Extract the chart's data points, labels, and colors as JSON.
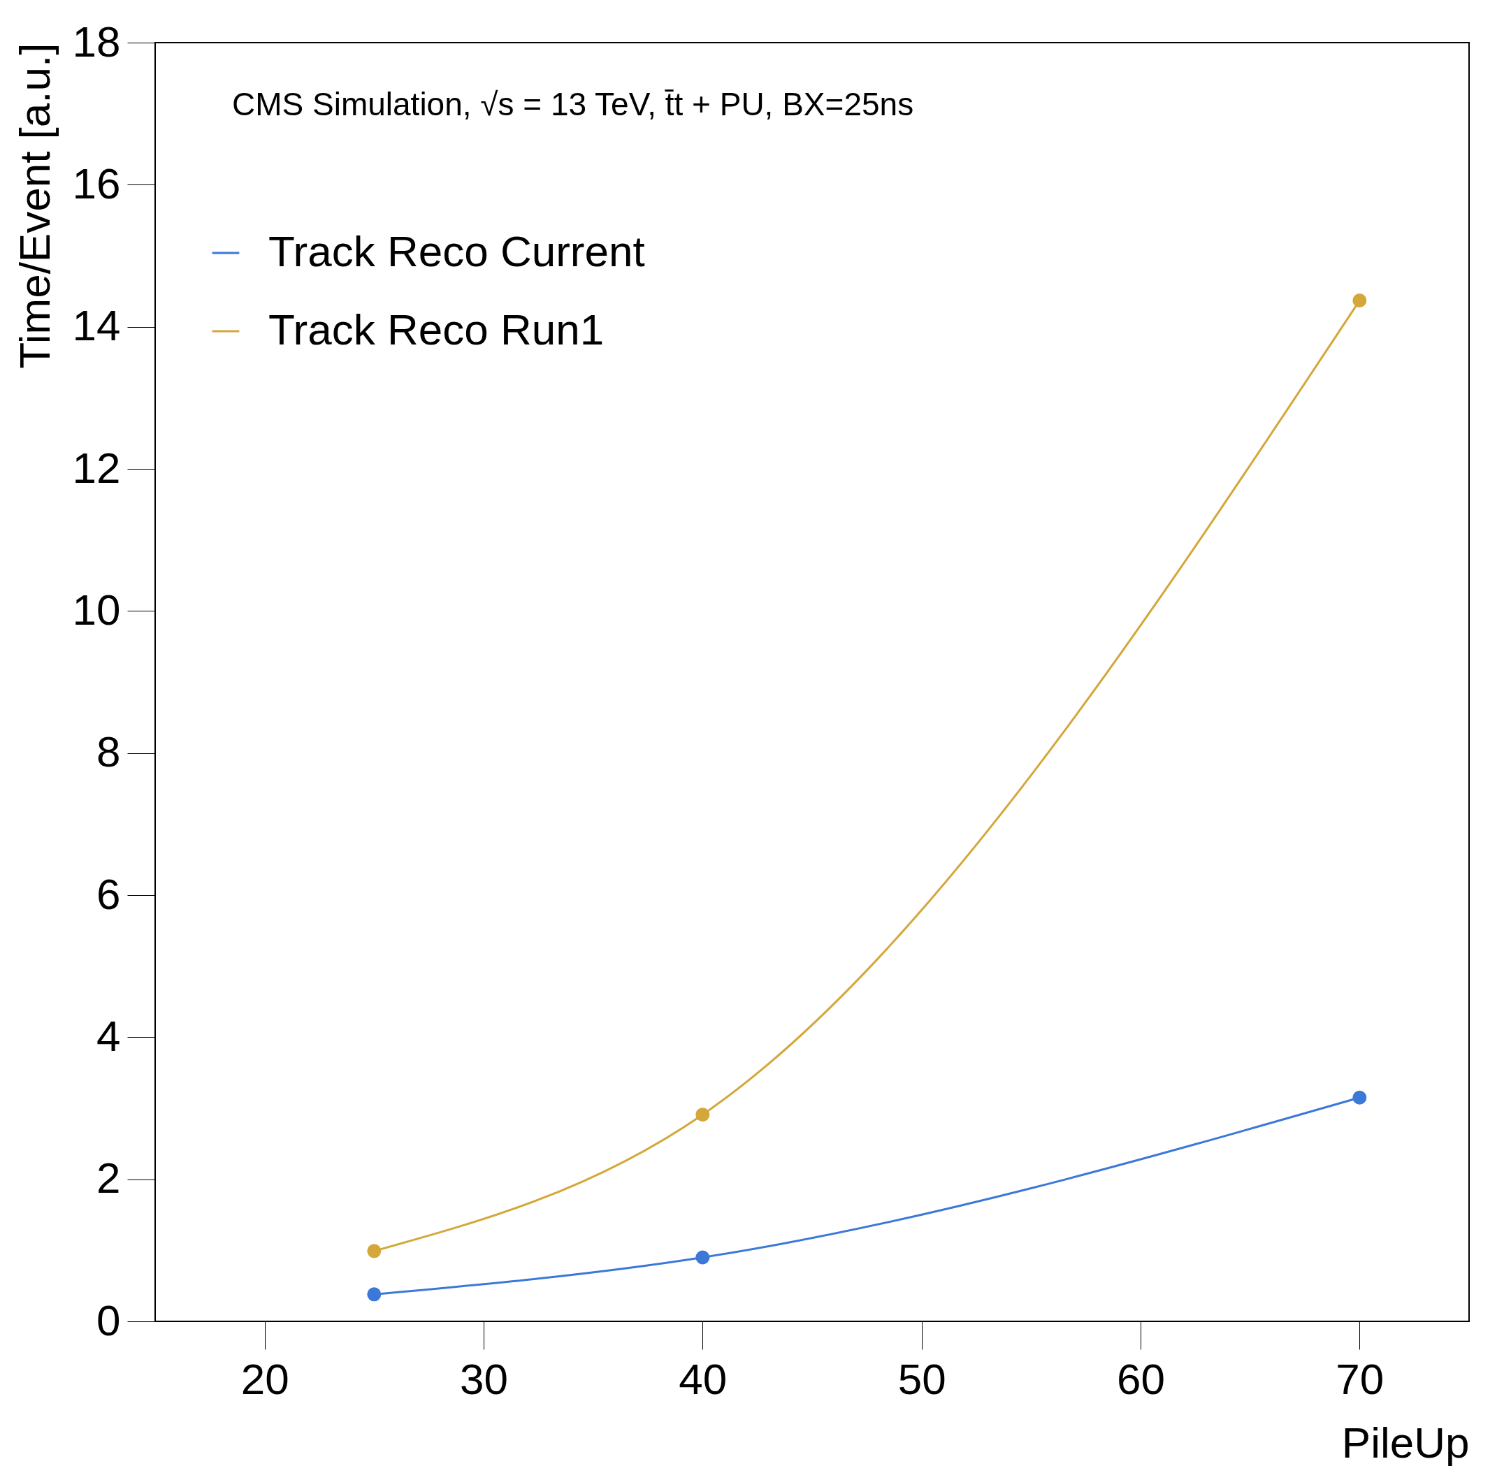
{
  "chart_data": {
    "type": "line",
    "xlabel": "PileUp",
    "ylabel": "Time/Event [a.u.]",
    "annotations": [
      "CMS Simulation, √s = 13 TeV, t̄t + PU, BX=25ns"
    ],
    "x": [
      25,
      40,
      70
    ],
    "series": [
      {
        "name": "Track Reco Current",
        "color": "#3c78d8",
        "values": [
          0.38,
          0.9,
          3.15
        ]
      },
      {
        "name": "Track Reco Run1",
        "color": "#d4a73a",
        "values": [
          0.99,
          2.91,
          14.37
        ]
      }
    ],
    "xlim": [
      15,
      75
    ],
    "xticks": [
      20,
      30,
      40,
      50,
      60,
      70
    ],
    "ylim": [
      0,
      18
    ],
    "yticks": [
      0,
      2,
      4,
      6,
      8,
      10,
      12,
      14,
      16,
      18
    ],
    "grid": false,
    "legend": "top left",
    "marker": "circle",
    "line_style": "solid"
  }
}
